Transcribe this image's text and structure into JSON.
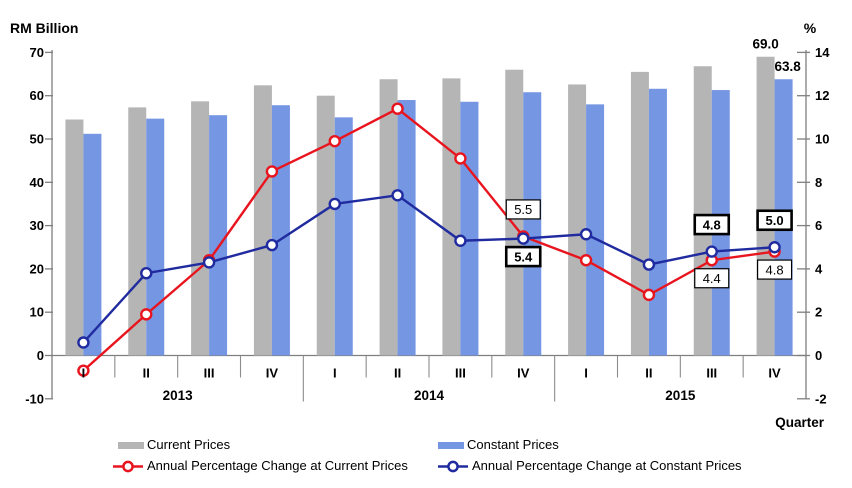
{
  "chart_data": {
    "type": "combo-grouped-bar-line-dual-axis",
    "left_axis": {
      "title": "RM Billion",
      "min": -10,
      "max": 70,
      "step": 10,
      "ticks": [
        70,
        60,
        50,
        40,
        30,
        20,
        10,
        0,
        -10
      ]
    },
    "right_axis": {
      "title": "%",
      "min": -2,
      "max": 14,
      "step": 2,
      "ticks": [
        14,
        12,
        10,
        8,
        6,
        4,
        2,
        0,
        -2
      ]
    },
    "x_axis_title": "Quarter",
    "quarters": [
      "I",
      "II",
      "III",
      "IV",
      "I",
      "II",
      "III",
      "IV",
      "I",
      "II",
      "III",
      "IV"
    ],
    "years": [
      {
        "label": "2013",
        "span": [
          0,
          3
        ]
      },
      {
        "label": "2014",
        "span": [
          4,
          7
        ]
      },
      {
        "label": "2015",
        "span": [
          8,
          11
        ]
      }
    ],
    "series": [
      {
        "id": "current_bars",
        "name": "Current Prices",
        "type": "bar",
        "axis": "left",
        "color": "#b5b5b5",
        "values": [
          54.5,
          57.3,
          58.7,
          62.4,
          60.0,
          63.8,
          64.0,
          66.0,
          62.6,
          65.5,
          66.8,
          69.0
        ]
      },
      {
        "id": "constant_bars",
        "name": "Constant Prices",
        "type": "bar",
        "axis": "left",
        "color": "#7596e3",
        "values": [
          51.2,
          54.7,
          55.5,
          57.8,
          55.0,
          59.0,
          58.6,
          60.8,
          58.0,
          61.6,
          61.3,
          63.8
        ]
      },
      {
        "id": "pct_current",
        "name": "Annual Percentage Change at Current Prices",
        "type": "line",
        "axis": "right",
        "color": "#e8141e",
        "values": [
          -0.7,
          1.9,
          4.4,
          8.5,
          9.9,
          11.4,
          9.1,
          5.5,
          4.4,
          2.8,
          4.4,
          4.8
        ]
      },
      {
        "id": "pct_constant",
        "name": "Annual Percentage Change at Constant Prices",
        "type": "line",
        "axis": "right",
        "color": "#202b9f",
        "values": [
          0.6,
          3.8,
          4.3,
          5.1,
          7.0,
          7.4,
          5.3,
          5.4,
          5.6,
          4.2,
          4.8,
          5.0
        ]
      }
    ],
    "annotations": [
      {
        "kind": "bar-label",
        "series": "current_bars",
        "index": 11,
        "text": "69.0"
      },
      {
        "kind": "bar-label",
        "series": "constant_bars",
        "index": 11,
        "text": "63.8"
      },
      {
        "kind": "box",
        "series": "pct_current",
        "index": 7,
        "text": "5.5",
        "border": "thin",
        "placement": "above"
      },
      {
        "kind": "box",
        "series": "pct_constant",
        "index": 7,
        "text": "5.4",
        "border": "bold",
        "placement": "below"
      },
      {
        "kind": "box",
        "series": "pct_constant",
        "index": 10,
        "text": "4.8",
        "border": "bold",
        "placement": "above"
      },
      {
        "kind": "box",
        "series": "pct_current",
        "index": 10,
        "text": "4.4",
        "border": "thin",
        "placement": "below"
      },
      {
        "kind": "box",
        "series": "pct_constant",
        "index": 11,
        "text": "5.0",
        "border": "bold",
        "placement": "above"
      },
      {
        "kind": "box",
        "series": "pct_current",
        "index": 11,
        "text": "4.8",
        "border": "thin",
        "placement": "below"
      }
    ],
    "legend_position": "bottom",
    "grid": "off"
  }
}
